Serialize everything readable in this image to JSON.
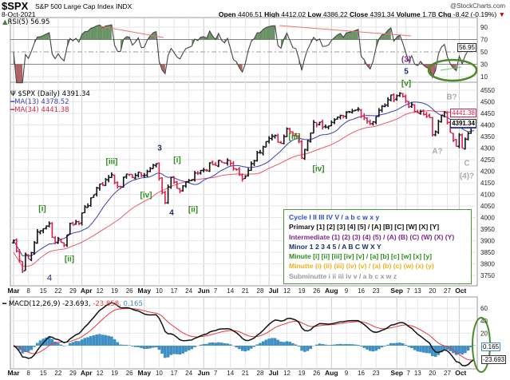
{
  "header": {
    "symbol": "$SPX",
    "name": "S&P 500 Large Cap Index",
    "exchange": "INDX",
    "date": "8-Oct-2021",
    "watermark": "@StockCharts.com",
    "open_label": "Open",
    "open": "4406.51",
    "high_label": "High",
    "high": "4412.02",
    "low_label": "Low",
    "low": "4386.22",
    "close_label": "Close",
    "close": "4391.34",
    "volume_label": "Volume",
    "volume": "1.7B",
    "chg_label": "Chg",
    "chg": "-8.42 (-0.19%)",
    "chg_arrow": "▼"
  },
  "rsi": {
    "legend": "RSI(5) 56.95",
    "value_tag": "56.95",
    "ticks": [
      "90",
      "70",
      "50",
      "30",
      "10"
    ]
  },
  "price": {
    "legend": "$SPX (Daily) 4391.34",
    "ma13": "MA(13) 4378.52",
    "ma34": "MA(34) 4441.38",
    "ma34_tag": "4441.38",
    "close_tag": "4391.34",
    "ticks": [
      "4550",
      "4500",
      "4450",
      "4400",
      "4350",
      "4300",
      "4250",
      "4200",
      "4150",
      "4100",
      "4050",
      "4000",
      "3950",
      "3900",
      "3850",
      "3800",
      "3750"
    ]
  },
  "dates": [
    "Mar",
    "8",
    "15",
    "22",
    "29",
    "Apr",
    "12",
    "19",
    "26",
    "May",
    "10",
    "17",
    "24",
    "Jun",
    "7",
    "14",
    "21",
    "28",
    "Jul",
    "12",
    "19",
    "26",
    "Aug",
    "9",
    "16",
    "23",
    "Sep",
    "7",
    "13",
    "20",
    "27",
    "Oct"
  ],
  "macd": {
    "legend_name": "MACD(12,26,9)",
    "macd_val": "-23.693,",
    "signal_val": "-23.858,",
    "hist_val": "0.165",
    "ticks": [
      "60",
      "40",
      "20"
    ],
    "hist_tag": "0.165",
    "macd_tag": "-23.693"
  },
  "waves": {
    "i1": "[i]",
    "ii1": "[ii]",
    "iii1": "[iii]",
    "three": "3",
    "i2": "[i]",
    "iv1": "[iv]",
    "ii2": "[ii]",
    "four": "4",
    "iii2": "[iii]",
    "iv2": "[iv]",
    "p3": "(3)",
    "five": "5",
    "v": "[v]",
    "bq": "B?",
    "aq": "A?",
    "c": "C",
    "p4q": "(4)?",
    "four_b": "4"
  },
  "wave_legend": {
    "cycle": "Cycle I II III IV V / a b c w x y",
    "primary": "Primary [1] [2] [3] [4] [5] / [A] [B] [C] [W] [X] [Y]",
    "intermediate": "Intermediate (1) (2) (3) (4) (5) / (A) (B) (C) (W) (X) (Y)",
    "minor": "Minor 1 2 3 4 5 / A B C W X Y",
    "minute": "Minute [i] [ii] [iii] [iv] [v] / [a] [b] [c] [w] [x] [y]",
    "minutte": "Minutte (i) (ii) (iii) (iv) (v) / (a) (b) (c) (w) (x) (y)",
    "subminutte": "Subminutte i ii iii iv v / a b c x w z"
  },
  "colors": {
    "up": "#111111",
    "down": "#d6204a",
    "ma13": "#3a3fb0",
    "ma34": "#e85a6a",
    "rsi_fill": "#4f7f4a",
    "hist": "#3d8fc4",
    "macd": "#111111",
    "signal": "#e83a3a",
    "ellipse": "#4a8a2a"
  },
  "chart_data": {
    "type": "ohlc",
    "title": "$SPX S&P 500 Large Cap Index (Daily)",
    "ylim": [
      3720,
      4570
    ],
    "x": [
      "03-01",
      "03-04",
      "03-05",
      "03-08",
      "03-11",
      "03-12",
      "03-17",
      "03-18",
      "03-24",
      "03-26",
      "03-31",
      "04-01",
      "04-09",
      "04-16",
      "04-20",
      "04-26",
      "04-30",
      "05-07",
      "05-12",
      "05-14",
      "05-19",
      "05-21",
      "05-28",
      "06-04",
      "06-11",
      "06-18",
      "06-25",
      "07-02",
      "07-08",
      "07-12",
      "07-16",
      "07-19",
      "07-23",
      "07-30",
      "08-06",
      "08-13",
      "08-19",
      "08-27",
      "09-02",
      "09-10",
      "09-17",
      "09-20",
      "09-24",
      "09-30",
      "10-01",
      "10-04",
      "10-06",
      "10-07",
      "10-08"
    ],
    "close": [
      3901,
      3768,
      3841,
      3821,
      3939,
      3943,
      3974,
      3915,
      3881,
      3974,
      3973,
      4020,
      4128,
      4185,
      4134,
      4187,
      4181,
      4232,
      4063,
      4173,
      4115,
      4155,
      4204,
      4229,
      4247,
      4166,
      4280,
      4352,
      4320,
      4384,
      4327,
      4258,
      4411,
      4395,
      4437,
      4468,
      4405,
      4509,
      4537,
      4458,
      4432,
      4358,
      4455,
      4307,
      4357,
      4300,
      4363,
      4399,
      4391
    ]
  }
}
